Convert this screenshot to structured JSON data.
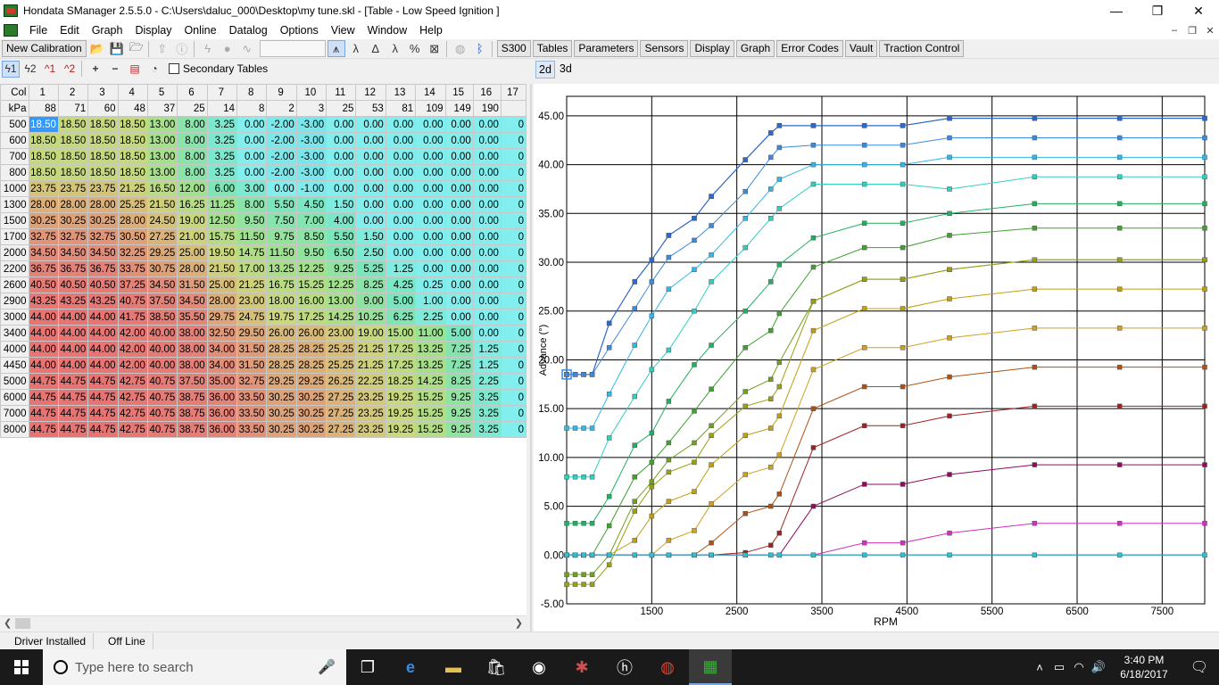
{
  "window": {
    "title": "Hondata SManager 2.5.5.0 - C:\\Users\\daluc_000\\Desktop\\my tune.skl - [Table - Low Speed Ignition ]",
    "minimize": "—",
    "restore": "❐",
    "close": "✕"
  },
  "menu": {
    "items": [
      "File",
      "Edit",
      "Graph",
      "Display",
      "Online",
      "Datalog",
      "Options",
      "View",
      "Window",
      "Help"
    ],
    "child_min": "–",
    "child_restore": "❐",
    "child_close": "✕"
  },
  "toolbar": {
    "new_calibration": "New Calibration",
    "buttons": [
      "S300",
      "Tables",
      "Parameters",
      "Sensors",
      "Display",
      "Graph",
      "Error Codes",
      "Vault",
      "Traction Control"
    ]
  },
  "table_toolbar": {
    "secondary_tables": "Secondary Tables"
  },
  "graph_tabs": [
    "2d",
    "3d"
  ],
  "grid": {
    "col_label": "Col",
    "kpa_label": "kPa",
    "cols": [
      "1",
      "2",
      "3",
      "4",
      "5",
      "6",
      "7",
      "8",
      "9",
      "10",
      "11",
      "12",
      "13",
      "14",
      "15",
      "16",
      "17"
    ],
    "kpa": [
      "88",
      "71",
      "60",
      "48",
      "37",
      "25",
      "14",
      "8",
      "2",
      "3",
      "25",
      "53",
      "81",
      "109",
      "149",
      "190",
      ""
    ],
    "rows": [
      {
        "rpm": "500",
        "v": [
          "18.50",
          "18.50",
          "18.50",
          "18.50",
          "13.00",
          "8.00",
          "3.25",
          "0.00",
          "-2.00",
          "-3.00",
          "0.00",
          "0.00",
          "0.00",
          "0.00",
          "0.00",
          "0.00",
          "0"
        ]
      },
      {
        "rpm": "600",
        "v": [
          "18.50",
          "18.50",
          "18.50",
          "18.50",
          "13.00",
          "8.00",
          "3.25",
          "0.00",
          "-2.00",
          "-3.00",
          "0.00",
          "0.00",
          "0.00",
          "0.00",
          "0.00",
          "0.00",
          "0"
        ]
      },
      {
        "rpm": "700",
        "v": [
          "18.50",
          "18.50",
          "18.50",
          "18.50",
          "13.00",
          "8.00",
          "3.25",
          "0.00",
          "-2.00",
          "-3.00",
          "0.00",
          "0.00",
          "0.00",
          "0.00",
          "0.00",
          "0.00",
          "0"
        ]
      },
      {
        "rpm": "800",
        "v": [
          "18.50",
          "18.50",
          "18.50",
          "18.50",
          "13.00",
          "8.00",
          "3.25",
          "0.00",
          "-2.00",
          "-3.00",
          "0.00",
          "0.00",
          "0.00",
          "0.00",
          "0.00",
          "0.00",
          "0"
        ]
      },
      {
        "rpm": "1000",
        "v": [
          "23.75",
          "23.75",
          "23.75",
          "21.25",
          "16.50",
          "12.00",
          "6.00",
          "3.00",
          "0.00",
          "-1.00",
          "0.00",
          "0.00",
          "0.00",
          "0.00",
          "0.00",
          "0.00",
          "0"
        ]
      },
      {
        "rpm": "1300",
        "v": [
          "28.00",
          "28.00",
          "28.00",
          "25.25",
          "21.50",
          "16.25",
          "11.25",
          "8.00",
          "5.50",
          "4.50",
          "1.50",
          "0.00",
          "0.00",
          "0.00",
          "0.00",
          "0.00",
          "0"
        ]
      },
      {
        "rpm": "1500",
        "v": [
          "30.25",
          "30.25",
          "30.25",
          "28.00",
          "24.50",
          "19.00",
          "12.50",
          "9.50",
          "7.50",
          "7.00",
          "4.00",
          "0.00",
          "0.00",
          "0.00",
          "0.00",
          "0.00",
          "0"
        ]
      },
      {
        "rpm": "1700",
        "v": [
          "32.75",
          "32.75",
          "32.75",
          "30.50",
          "27.25",
          "21.00",
          "15.75",
          "11.50",
          "9.75",
          "8.50",
          "5.50",
          "1.50",
          "0.00",
          "0.00",
          "0.00",
          "0.00",
          "0"
        ]
      },
      {
        "rpm": "2000",
        "v": [
          "34.50",
          "34.50",
          "34.50",
          "32.25",
          "29.25",
          "25.00",
          "19.50",
          "14.75",
          "11.50",
          "9.50",
          "6.50",
          "2.50",
          "0.00",
          "0.00",
          "0.00",
          "0.00",
          "0"
        ]
      },
      {
        "rpm": "2200",
        "v": [
          "36.75",
          "36.75",
          "36.75",
          "33.75",
          "30.75",
          "28.00",
          "21.50",
          "17.00",
          "13.25",
          "12.25",
          "9.25",
          "5.25",
          "1.25",
          "0.00",
          "0.00",
          "0.00",
          "0"
        ]
      },
      {
        "rpm": "2600",
        "v": [
          "40.50",
          "40.50",
          "40.50",
          "37.25",
          "34.50",
          "31.50",
          "25.00",
          "21.25",
          "16.75",
          "15.25",
          "12.25",
          "8.25",
          "4.25",
          "0.25",
          "0.00",
          "0.00",
          "0"
        ]
      },
      {
        "rpm": "2900",
        "v": [
          "43.25",
          "43.25",
          "43.25",
          "40.75",
          "37.50",
          "34.50",
          "28.00",
          "23.00",
          "18.00",
          "16.00",
          "13.00",
          "9.00",
          "5.00",
          "1.00",
          "0.00",
          "0.00",
          "0"
        ]
      },
      {
        "rpm": "3000",
        "v": [
          "44.00",
          "44.00",
          "44.00",
          "41.75",
          "38.50",
          "35.50",
          "29.75",
          "24.75",
          "19.75",
          "17.25",
          "14.25",
          "10.25",
          "6.25",
          "2.25",
          "0.00",
          "0.00",
          "0"
        ]
      },
      {
        "rpm": "3400",
        "v": [
          "44.00",
          "44.00",
          "44.00",
          "42.00",
          "40.00",
          "38.00",
          "32.50",
          "29.50",
          "26.00",
          "26.00",
          "23.00",
          "19.00",
          "15.00",
          "11.00",
          "5.00",
          "0.00",
          "0"
        ]
      },
      {
        "rpm": "4000",
        "v": [
          "44.00",
          "44.00",
          "44.00",
          "42.00",
          "40.00",
          "38.00",
          "34.00",
          "31.50",
          "28.25",
          "28.25",
          "25.25",
          "21.25",
          "17.25",
          "13.25",
          "7.25",
          "1.25",
          "0"
        ]
      },
      {
        "rpm": "4450",
        "v": [
          "44.00",
          "44.00",
          "44.00",
          "42.00",
          "40.00",
          "38.00",
          "34.00",
          "31.50",
          "28.25",
          "28.25",
          "25.25",
          "21.25",
          "17.25",
          "13.25",
          "7.25",
          "1.25",
          "0"
        ]
      },
      {
        "rpm": "5000",
        "v": [
          "44.75",
          "44.75",
          "44.75",
          "42.75",
          "40.75",
          "37.50",
          "35.00",
          "32.75",
          "29.25",
          "29.25",
          "26.25",
          "22.25",
          "18.25",
          "14.25",
          "8.25",
          "2.25",
          "0"
        ]
      },
      {
        "rpm": "6000",
        "v": [
          "44.75",
          "44.75",
          "44.75",
          "42.75",
          "40.75",
          "38.75",
          "36.00",
          "33.50",
          "30.25",
          "30.25",
          "27.25",
          "23.25",
          "19.25",
          "15.25",
          "9.25",
          "3.25",
          "0"
        ]
      },
      {
        "rpm": "7000",
        "v": [
          "44.75",
          "44.75",
          "44.75",
          "42.75",
          "40.75",
          "38.75",
          "36.00",
          "33.50",
          "30.25",
          "30.25",
          "27.25",
          "23.25",
          "19.25",
          "15.25",
          "9.25",
          "3.25",
          "0"
        ]
      },
      {
        "rpm": "8000",
        "v": [
          "44.75",
          "44.75",
          "44.75",
          "42.75",
          "40.75",
          "38.75",
          "36.00",
          "33.50",
          "30.25",
          "30.25",
          "27.25",
          "23.25",
          "19.25",
          "15.25",
          "9.25",
          "3.25",
          "0"
        ]
      }
    ]
  },
  "status": {
    "driver": "Driver Installed",
    "online": "Off Line"
  },
  "taskbar": {
    "search_placeholder": "Type here to search",
    "time": "3:40 PM",
    "date": "6/18/2017"
  },
  "chart_data": {
    "type": "line",
    "xlabel": "RPM",
    "ylabel": "Advance (°)",
    "xlim": [
      500,
      8000
    ],
    "ylim": [
      -5,
      47
    ],
    "xticks": [
      1500,
      2500,
      3500,
      4500,
      5500,
      6500,
      7500
    ],
    "yticks": [
      -5,
      0,
      5,
      10,
      15,
      20,
      25,
      30,
      35,
      40,
      45
    ],
    "x": [
      500,
      600,
      700,
      800,
      1000,
      1300,
      1500,
      1700,
      2000,
      2200,
      2600,
      2900,
      3000,
      3400,
      4000,
      4450,
      5000,
      6000,
      7000,
      8000
    ],
    "series": [
      {
        "color": "#1a2a9a",
        "values": [
          18.5,
          18.5,
          18.5,
          18.5,
          23.75,
          28,
          30.25,
          32.75,
          34.5,
          36.75,
          40.5,
          43.25,
          44,
          44,
          44,
          44,
          44.75,
          44.75,
          44.75,
          44.75
        ]
      },
      {
        "color": "#2a6ad0",
        "values": [
          18.5,
          18.5,
          18.5,
          18.5,
          23.75,
          28,
          30.25,
          32.75,
          34.5,
          36.75,
          40.5,
          43.25,
          44,
          44,
          44,
          44,
          44.75,
          44.75,
          44.75,
          44.75
        ]
      },
      {
        "color": "#3a8ae0",
        "values": [
          18.5,
          18.5,
          18.5,
          18.5,
          21.25,
          25.25,
          28,
          30.5,
          32.25,
          33.75,
          37.25,
          40.75,
          41.75,
          42,
          42,
          42,
          42.75,
          42.75,
          42.75,
          42.75
        ]
      },
      {
        "color": "#30b8e8",
        "values": [
          13,
          13,
          13,
          13,
          16.5,
          21.5,
          24.5,
          27.25,
          29.25,
          30.75,
          34.5,
          37.5,
          38.5,
          40,
          40,
          40,
          40.75,
          40.75,
          40.75,
          40.75
        ]
      },
      {
        "color": "#30d0c0",
        "values": [
          8,
          8,
          8,
          8,
          12,
          16.25,
          19,
          21,
          25,
          28,
          31.5,
          34.5,
          35.5,
          38,
          38,
          38,
          37.5,
          38.75,
          38.75,
          38.75
        ]
      },
      {
        "color": "#20b060",
        "values": [
          3.25,
          3.25,
          3.25,
          3.25,
          6,
          11.25,
          12.5,
          15.75,
          19.5,
          21.5,
          25,
          28,
          29.75,
          32.5,
          34,
          34,
          35,
          36,
          36,
          36
        ]
      },
      {
        "color": "#40a030",
        "values": [
          0,
          0,
          0,
          0,
          3,
          8,
          9.5,
          11.5,
          14.75,
          17,
          21.25,
          23,
          24.75,
          29.5,
          31.5,
          31.5,
          32.75,
          33.5,
          33.5,
          33.5
        ]
      },
      {
        "color": "#70a020",
        "values": [
          -2,
          -2,
          -2,
          -2,
          0,
          5.5,
          7.5,
          9.75,
          11.5,
          13.25,
          16.75,
          18,
          19.75,
          26,
          28.25,
          28.25,
          29.25,
          30.25,
          30.25,
          30.25
        ]
      },
      {
        "color": "#9aa010",
        "values": [
          -3,
          -3,
          -3,
          -3,
          -1,
          4.5,
          7,
          8.5,
          9.5,
          12.25,
          15.25,
          16,
          17.25,
          26,
          28.25,
          28.25,
          29.25,
          30.25,
          30.25,
          30.25
        ]
      },
      {
        "color": "#c0a010",
        "values": [
          0,
          0,
          0,
          0,
          0,
          1.5,
          4,
          5.5,
          6.5,
          9.25,
          12.25,
          13,
          14.25,
          23,
          25.25,
          25.25,
          26.25,
          27.25,
          27.25,
          27.25
        ]
      },
      {
        "color": "#d0a020",
        "values": [
          0,
          0,
          0,
          0,
          0,
          0,
          0,
          1.5,
          2.5,
          5.25,
          8.25,
          9,
          10.25,
          19,
          21.25,
          21.25,
          22.25,
          23.25,
          23.25,
          23.25
        ]
      },
      {
        "color": "#b05010",
        "values": [
          0,
          0,
          0,
          0,
          0,
          0,
          0,
          0,
          0,
          1.25,
          4.25,
          5,
          6.25,
          15,
          17.25,
          17.25,
          18.25,
          19.25,
          19.25,
          19.25
        ]
      },
      {
        "color": "#a02020",
        "values": [
          0,
          0,
          0,
          0,
          0,
          0,
          0,
          0,
          0,
          0,
          0.25,
          1,
          2.25,
          11,
          13.25,
          13.25,
          14.25,
          15.25,
          15.25,
          15.25
        ]
      },
      {
        "color": "#900860",
        "values": [
          0,
          0,
          0,
          0,
          0,
          0,
          0,
          0,
          0,
          0,
          0,
          0,
          0,
          5,
          7.25,
          7.25,
          8.25,
          9.25,
          9.25,
          9.25
        ]
      },
      {
        "color": "#d030c0",
        "values": [
          0,
          0,
          0,
          0,
          0,
          0,
          0,
          0,
          0,
          0,
          0,
          0,
          0,
          0,
          1.25,
          1.25,
          2.25,
          3.25,
          3.25,
          3.25
        ]
      },
      {
        "color": "#30c0d0",
        "values": [
          0,
          0,
          0,
          0,
          0,
          0,
          0,
          0,
          0,
          0,
          0,
          0,
          0,
          0,
          0,
          0,
          0,
          0,
          0,
          0
        ]
      }
    ]
  }
}
